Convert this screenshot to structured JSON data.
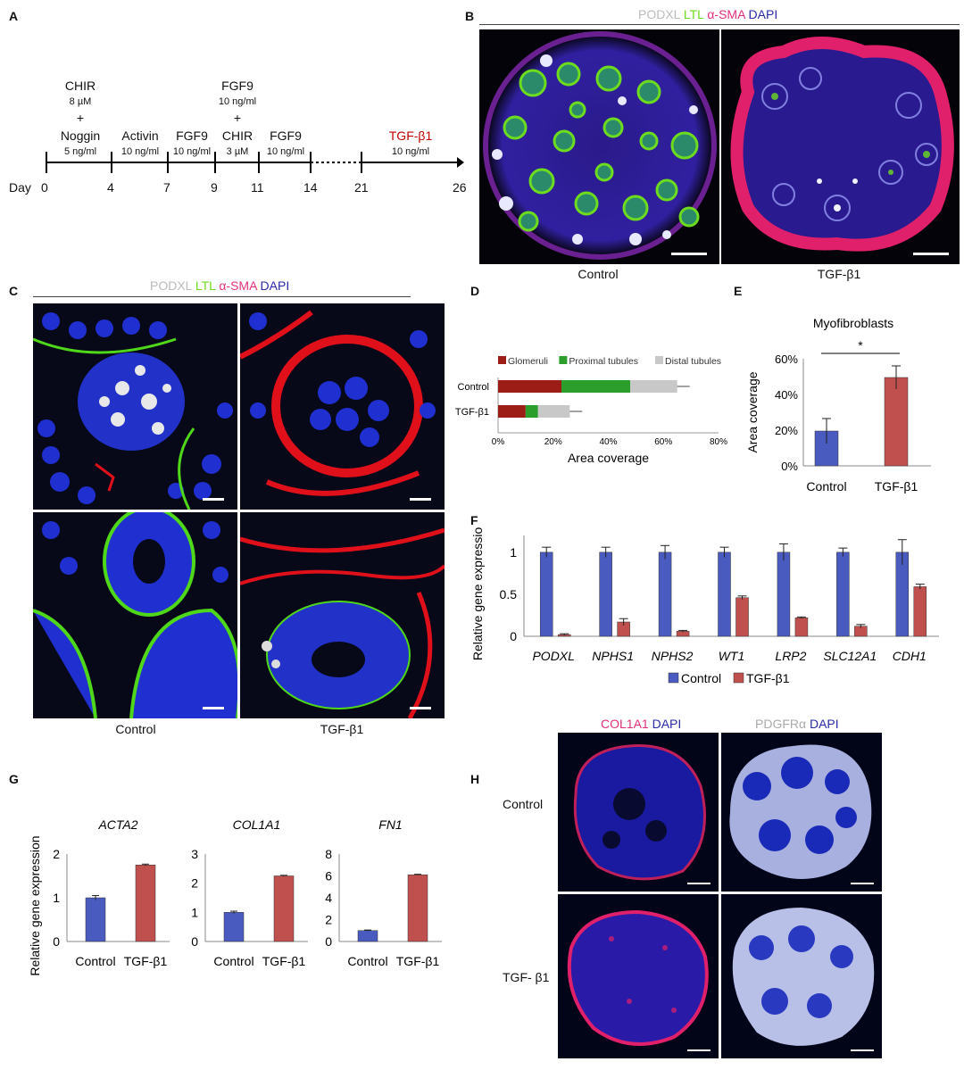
{
  "panels": {
    "A": "A",
    "B": "B",
    "C": "C",
    "D": "D",
    "E": "E",
    "F": "F",
    "G": "G",
    "H": "H"
  },
  "timeline": {
    "day_label": "Day",
    "days": [
      "0",
      "4",
      "7",
      "9",
      "11",
      "14",
      "21",
      "26"
    ],
    "chir1": {
      "name": "CHIR",
      "dose": "8 µM",
      "plus": "+"
    },
    "noggin": {
      "name": "Noggin",
      "dose": "5 ng/ml"
    },
    "activin": {
      "name": "Activin",
      "dose": "10 ng/ml"
    },
    "fgf9a": {
      "name": "FGF9",
      "dose": "10 ng/ml"
    },
    "fgf9chir": {
      "name": "FGF9",
      "dose": "10 ng/ml",
      "plus": "+",
      "name2": "CHIR",
      "dose2": "3 µM"
    },
    "fgf9b": {
      "name": "FGF9",
      "dose": "10 ng/ml"
    },
    "tgf": {
      "name": "TGF-β1",
      "dose": "10 ng/ml"
    }
  },
  "stain_legend": {
    "podxl": "PODXL",
    "ltl": "LTL",
    "asma": "α-SMA",
    "dapi": "DAPI"
  },
  "panel_b": {
    "left": "Control",
    "right": "TGF-β1"
  },
  "panel_c": {
    "left": "Control",
    "right": "TGF-β1"
  },
  "panel_h": {
    "col1a1": "COL1A1",
    "dapi1": "DAPI",
    "pdgfra": "PDGFRα",
    "dapi2": "DAPI",
    "row1": "Control",
    "row2": "TGF- β1"
  },
  "colors": {
    "glomeruli": "#9b1d16",
    "proximal": "#2c9e2c",
    "distal": "#c8c8c8",
    "control_bar": "#4a5bbf",
    "tgf_bar": "#c0504d",
    "tgf_text": "#c00000",
    "ltl": "#6ddc1e",
    "asma": "#e0307a",
    "dapi": "#2a2aa8",
    "podxl": "#bbbbbb"
  },
  "chart_data": [
    {
      "id": "D",
      "type": "bar",
      "orientation": "horizontal",
      "stacked": true,
      "categories": [
        "Control",
        "TGF-β1"
      ],
      "series": [
        {
          "name": "Glomeruli",
          "values": [
            23,
            10
          ]
        },
        {
          "name": "Proximal tubules",
          "values": [
            25,
            4.5
          ]
        },
        {
          "name": "Distal tubules",
          "values": [
            17,
            11.5
          ]
        }
      ],
      "xlabel": "Area coverage",
      "xticks": [
        "0%",
        "20%",
        "40%",
        "60%",
        "80%"
      ],
      "xlim": [
        0,
        80
      ],
      "legend": "top"
    },
    {
      "id": "E",
      "type": "bar",
      "title": "Myofibroblasts",
      "categories": [
        "Control",
        "TGF-β1"
      ],
      "values": [
        19.5,
        49.5
      ],
      "errors": [
        7,
        6.5
      ],
      "ylabel": "Area coverage",
      "yticks": [
        "0%",
        "20%",
        "40%",
        "60%"
      ],
      "ylim": [
        0,
        60
      ],
      "significance": "*"
    },
    {
      "id": "F",
      "type": "bar",
      "categories": [
        "PODXL",
        "NPHS1",
        "NPHS2",
        "WT1",
        "LRP2",
        "SLC12A1",
        "CDH1"
      ],
      "series": [
        {
          "name": "Control",
          "values": [
            1,
            1,
            1,
            1,
            1,
            1,
            1
          ],
          "errors": [
            0.06,
            0.06,
            0.08,
            0.06,
            0.1,
            0.05,
            0.15
          ]
        },
        {
          "name": "TGF-β1",
          "values": [
            0.02,
            0.17,
            0.06,
            0.46,
            0.22,
            0.12,
            0.59
          ],
          "errors": [
            0.01,
            0.04,
            0.01,
            0.02,
            0.01,
            0.02,
            0.03
          ]
        }
      ],
      "ylabel": "Relative gene expression",
      "yticks": [
        "0",
        "0.5",
        "1"
      ],
      "ylim": [
        0,
        1.2
      ],
      "legend": "bottom"
    },
    {
      "id": "G1",
      "type": "bar",
      "title": "ACTA2",
      "categories": [
        "Control",
        "TGF-β1"
      ],
      "values": [
        1,
        1.75
      ],
      "errors": [
        0.05,
        0.02
      ],
      "ylabel": "Relative gene expression",
      "yticks": [
        "0",
        "1",
        "2"
      ],
      "ylim": [
        0,
        2
      ]
    },
    {
      "id": "G2",
      "type": "bar",
      "title": "COL1A1",
      "categories": [
        "Control",
        "TGF-β1"
      ],
      "values": [
        1,
        2.25
      ],
      "errors": [
        0.04,
        0.02
      ],
      "yticks": [
        "0",
        "1",
        "2",
        "3"
      ],
      "ylim": [
        0,
        3
      ]
    },
    {
      "id": "G3",
      "type": "bar",
      "title": "FN1",
      "categories": [
        "Control",
        "TGF-β1"
      ],
      "values": [
        1,
        6.1
      ],
      "errors": [
        0.05,
        0.05
      ],
      "yticks": [
        "0",
        "2",
        "4",
        "6",
        "8"
      ],
      "ylim": [
        0,
        8
      ]
    }
  ]
}
